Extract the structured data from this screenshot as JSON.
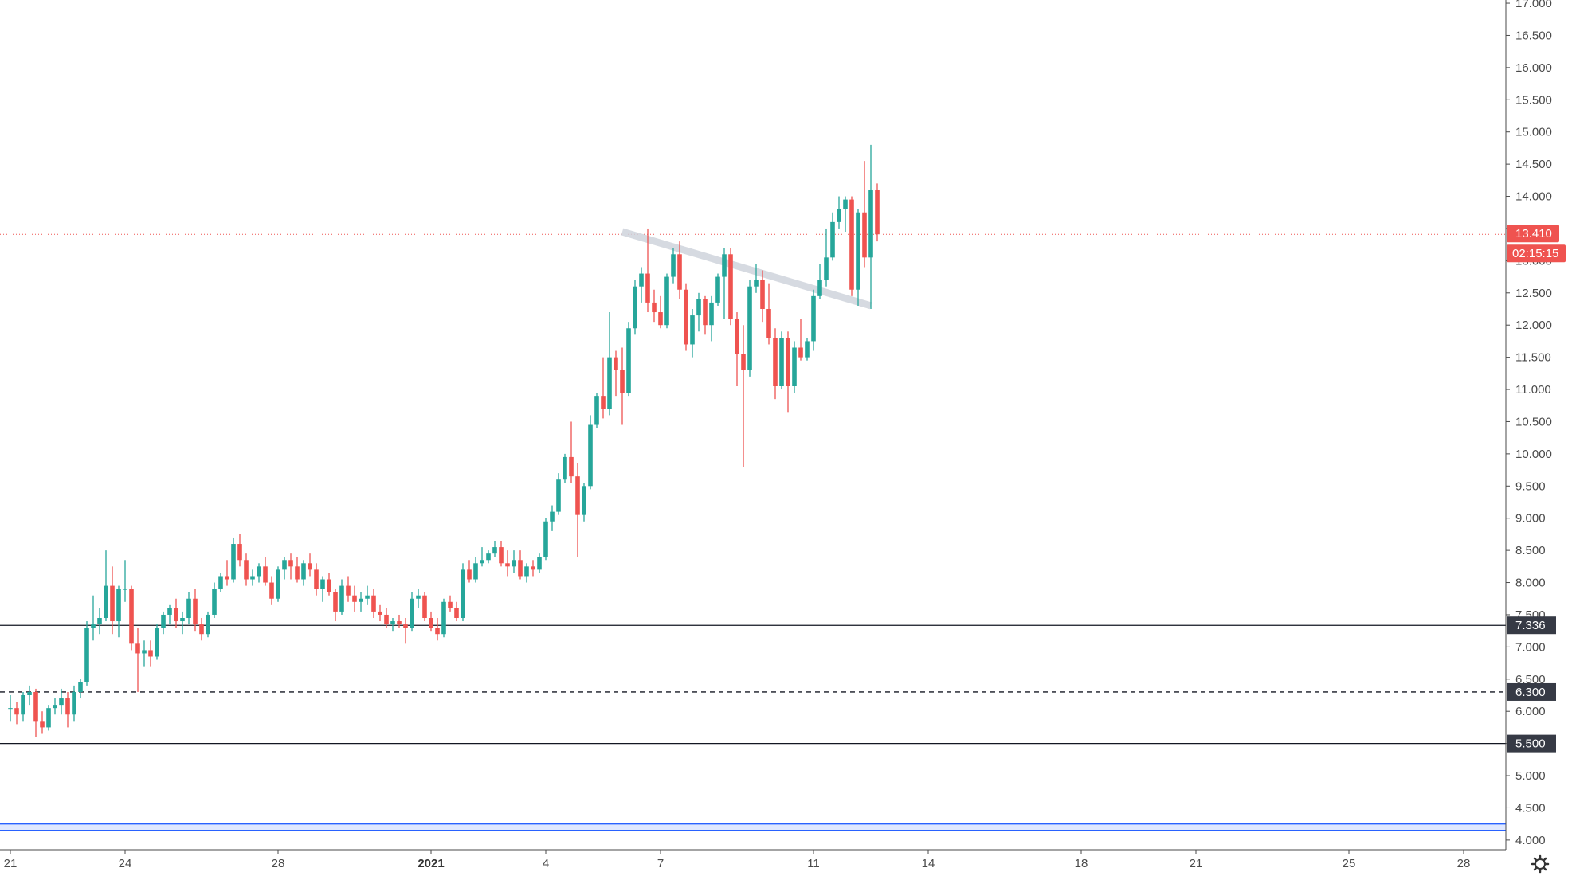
{
  "colors": {
    "up": "#26a69a",
    "down": "#ef5350",
    "price_line": "#ef5350",
    "level_line": "#131722",
    "level_badge": "#363a45",
    "band": "#2962ff",
    "trendline": "#cfd3dc",
    "axis": "#4a4a4a"
  },
  "icons": {
    "settings": "gear-icon"
  },
  "chart_data": {
    "type": "candlestick",
    "ylim": [
      3.85,
      17.05
    ],
    "y_ticks": [
      "4.000",
      "4.500",
      "5.000",
      "5.500",
      "6.000",
      "6.500",
      "7.000",
      "7.500",
      "8.000",
      "8.500",
      "9.000",
      "9.500",
      "10.000",
      "10.500",
      "11.000",
      "11.500",
      "12.000",
      "12.500",
      "13.000",
      "13.500",
      "14.000",
      "14.500",
      "15.000",
      "15.500",
      "16.000",
      "16.500",
      "17.000"
    ],
    "x_ticks": [
      {
        "label": "21",
        "bar": 0
      },
      {
        "label": "24",
        "bar": 18
      },
      {
        "label": "28",
        "bar": 42
      },
      {
        "label": "2021",
        "bar": 66,
        "bold": true
      },
      {
        "label": "4",
        "bar": 84
      },
      {
        "label": "7",
        "bar": 102
      },
      {
        "label": "11",
        "bar": 126
      },
      {
        "label": "14",
        "bar": 144
      },
      {
        "label": "18",
        "bar": 168
      },
      {
        "label": "21",
        "bar": 186
      },
      {
        "label": "25",
        "bar": 210
      },
      {
        "label": "28",
        "bar": 228
      }
    ],
    "interval": "4h",
    "candles": [
      [
        6.05,
        6.25,
        5.85,
        6.05
      ],
      [
        6.05,
        6.15,
        5.8,
        5.95
      ],
      [
        5.95,
        6.3,
        5.85,
        6.25
      ],
      [
        6.25,
        6.4,
        6.1,
        6.3
      ],
      [
        6.3,
        6.35,
        5.6,
        5.85
      ],
      [
        5.85,
        6.0,
        5.65,
        5.75
      ],
      [
        5.75,
        6.1,
        5.7,
        6.05
      ],
      [
        6.05,
        6.2,
        5.95,
        6.1
      ],
      [
        6.1,
        6.35,
        5.95,
        6.2
      ],
      [
        6.2,
        6.3,
        5.75,
        5.95
      ],
      [
        5.95,
        6.4,
        5.85,
        6.3
      ],
      [
        6.3,
        6.5,
        6.2,
        6.45
      ],
      [
        6.45,
        7.4,
        6.4,
        7.3
      ],
      [
        7.3,
        7.8,
        7.1,
        7.35
      ],
      [
        7.35,
        7.6,
        7.2,
        7.45
      ],
      [
        7.45,
        8.5,
        7.4,
        7.95
      ],
      [
        7.95,
        8.25,
        7.2,
        7.4
      ],
      [
        7.4,
        7.95,
        7.15,
        7.9
      ],
      [
        7.9,
        8.35,
        7.7,
        7.9
      ],
      [
        7.9,
        7.95,
        6.95,
        7.05
      ],
      [
        7.05,
        7.3,
        6.3,
        6.9
      ],
      [
        6.9,
        7.1,
        6.7,
        6.95
      ],
      [
        6.95,
        7.1,
        6.7,
        6.85
      ],
      [
        6.85,
        7.35,
        6.8,
        7.3
      ],
      [
        7.3,
        7.55,
        7.2,
        7.5
      ],
      [
        7.5,
        7.65,
        7.35,
        7.6
      ],
      [
        7.6,
        7.75,
        7.3,
        7.4
      ],
      [
        7.4,
        7.55,
        7.2,
        7.45
      ],
      [
        7.45,
        7.85,
        7.35,
        7.75
      ],
      [
        7.75,
        7.9,
        7.25,
        7.35
      ],
      [
        7.35,
        7.45,
        7.1,
        7.2
      ],
      [
        7.2,
        7.55,
        7.15,
        7.5
      ],
      [
        7.5,
        8.0,
        7.45,
        7.9
      ],
      [
        7.9,
        8.15,
        7.85,
        8.1
      ],
      [
        8.1,
        8.35,
        7.95,
        8.05
      ],
      [
        8.05,
        8.7,
        8.0,
        8.6
      ],
      [
        8.6,
        8.75,
        8.25,
        8.35
      ],
      [
        8.35,
        8.45,
        7.95,
        8.05
      ],
      [
        8.05,
        8.2,
        7.95,
        8.1
      ],
      [
        8.1,
        8.3,
        8.0,
        8.25
      ],
      [
        8.25,
        8.4,
        7.95,
        8.0
      ],
      [
        8.0,
        8.1,
        7.65,
        7.75
      ],
      [
        7.75,
        8.25,
        7.7,
        8.2
      ],
      [
        8.2,
        8.4,
        8.05,
        8.35
      ],
      [
        8.35,
        8.45,
        8.05,
        8.25
      ],
      [
        8.25,
        8.4,
        8.0,
        8.05
      ],
      [
        8.05,
        8.35,
        7.95,
        8.3
      ],
      [
        8.3,
        8.45,
        8.1,
        8.2
      ],
      [
        8.2,
        8.3,
        7.8,
        7.9
      ],
      [
        7.9,
        8.1,
        7.7,
        8.05
      ],
      [
        8.05,
        8.15,
        7.8,
        7.85
      ],
      [
        7.85,
        7.9,
        7.4,
        7.55
      ],
      [
        7.55,
        8.05,
        7.5,
        7.95
      ],
      [
        7.95,
        8.1,
        7.7,
        7.8
      ],
      [
        7.8,
        7.95,
        7.55,
        7.7
      ],
      [
        7.7,
        7.85,
        7.55,
        7.75
      ],
      [
        7.75,
        7.95,
        7.65,
        7.8
      ],
      [
        7.8,
        7.9,
        7.45,
        7.55
      ],
      [
        7.55,
        7.65,
        7.4,
        7.5
      ],
      [
        7.5,
        7.6,
        7.3,
        7.35
      ],
      [
        7.35,
        7.45,
        7.25,
        7.4
      ],
      [
        7.4,
        7.5,
        7.3,
        7.35
      ],
      [
        7.35,
        7.45,
        7.05,
        7.3
      ],
      [
        7.3,
        7.85,
        7.25,
        7.75
      ],
      [
        7.75,
        7.9,
        7.6,
        7.8
      ],
      [
        7.8,
        7.85,
        7.4,
        7.45
      ],
      [
        7.45,
        7.55,
        7.25,
        7.3
      ],
      [
        7.3,
        7.45,
        7.1,
        7.2
      ],
      [
        7.2,
        7.75,
        7.15,
        7.7
      ],
      [
        7.7,
        7.8,
        7.55,
        7.6
      ],
      [
        7.6,
        7.7,
        7.4,
        7.45
      ],
      [
        7.45,
        8.3,
        7.4,
        8.2
      ],
      [
        8.2,
        8.35,
        8.0,
        8.05
      ],
      [
        8.05,
        8.4,
        8.0,
        8.3
      ],
      [
        8.3,
        8.55,
        8.25,
        8.35
      ],
      [
        8.35,
        8.5,
        8.3,
        8.45
      ],
      [
        8.45,
        8.65,
        8.4,
        8.55
      ],
      [
        8.55,
        8.65,
        8.25,
        8.3
      ],
      [
        8.3,
        8.5,
        8.1,
        8.25
      ],
      [
        8.25,
        8.5,
        8.15,
        8.35
      ],
      [
        8.35,
        8.5,
        8.05,
        8.1
      ],
      [
        8.1,
        8.3,
        8.0,
        8.25
      ],
      [
        8.25,
        8.35,
        8.1,
        8.2
      ],
      [
        8.2,
        8.45,
        8.15,
        8.4
      ],
      [
        8.4,
        9.0,
        8.35,
        8.95
      ],
      [
        8.95,
        9.2,
        8.8,
        9.1
      ],
      [
        9.1,
        9.7,
        9.05,
        9.6
      ],
      [
        9.6,
        10.0,
        9.55,
        9.95
      ],
      [
        9.95,
        10.5,
        9.55,
        9.65
      ],
      [
        9.65,
        9.85,
        8.4,
        9.05
      ],
      [
        9.05,
        9.55,
        8.95,
        9.5
      ],
      [
        9.5,
        10.6,
        9.45,
        10.45
      ],
      [
        10.45,
        10.95,
        10.4,
        10.9
      ],
      [
        10.9,
        11.5,
        10.55,
        10.7
      ],
      [
        10.7,
        12.2,
        10.6,
        11.5
      ],
      [
        11.5,
        11.6,
        10.9,
        11.3
      ],
      [
        11.3,
        11.65,
        10.45,
        10.95
      ],
      [
        10.95,
        12.05,
        10.9,
        11.95
      ],
      [
        11.95,
        12.7,
        11.85,
        12.6
      ],
      [
        12.6,
        12.9,
        12.35,
        12.8
      ],
      [
        12.8,
        13.5,
        12.2,
        12.35
      ],
      [
        12.35,
        12.55,
        12.05,
        12.2
      ],
      [
        12.2,
        12.45,
        11.95,
        12.0
      ],
      [
        12.0,
        12.8,
        11.95,
        12.75
      ],
      [
        12.75,
        13.2,
        12.65,
        13.1
      ],
      [
        13.1,
        13.3,
        12.4,
        12.55
      ],
      [
        12.55,
        12.65,
        11.6,
        11.7
      ],
      [
        11.7,
        12.25,
        11.5,
        12.15
      ],
      [
        12.15,
        12.5,
        11.9,
        12.4
      ],
      [
        12.4,
        12.45,
        11.85,
        12.0
      ],
      [
        12.0,
        12.45,
        11.75,
        12.35
      ],
      [
        12.35,
        12.8,
        12.3,
        12.75
      ],
      [
        12.75,
        13.2,
        12.1,
        13.1
      ],
      [
        13.1,
        13.2,
        12.0,
        12.1
      ],
      [
        12.1,
        12.2,
        11.05,
        11.55
      ],
      [
        11.55,
        12.0,
        9.8,
        11.3
      ],
      [
        11.3,
        12.7,
        11.2,
        12.6
      ],
      [
        12.6,
        12.95,
        12.5,
        12.7
      ],
      [
        12.7,
        12.85,
        12.05,
        12.25
      ],
      [
        12.25,
        12.65,
        11.7,
        11.8
      ],
      [
        11.8,
        11.95,
        10.85,
        11.05
      ],
      [
        11.05,
        11.9,
        11.0,
        11.8
      ],
      [
        11.8,
        11.9,
        10.65,
        11.05
      ],
      [
        11.05,
        11.75,
        10.95,
        11.65
      ],
      [
        11.65,
        12.1,
        11.45,
        11.5
      ],
      [
        11.5,
        11.8,
        11.45,
        11.75
      ],
      [
        11.75,
        12.55,
        11.6,
        12.45
      ],
      [
        12.45,
        12.95,
        12.4,
        12.7
      ],
      [
        12.7,
        13.5,
        12.6,
        13.05
      ],
      [
        13.05,
        13.75,
        13.0,
        13.6
      ],
      [
        13.6,
        14.0,
        13.5,
        13.8
      ],
      [
        13.8,
        14.0,
        13.45,
        13.95
      ],
      [
        13.95,
        14.0,
        12.45,
        12.55
      ],
      [
        12.55,
        13.8,
        12.3,
        13.75
      ],
      [
        13.75,
        14.55,
        12.9,
        13.05
      ],
      [
        13.05,
        14.8,
        12.25,
        14.1
      ],
      [
        14.1,
        14.2,
        13.3,
        13.41
      ]
    ],
    "trendline": {
      "start": {
        "bar": 96,
        "price": 13.45
      },
      "end": {
        "bar": 135,
        "price": 12.3
      }
    },
    "levels": [
      {
        "price": 7.336,
        "label": "7.336",
        "style": "solid"
      },
      {
        "price": 6.3,
        "label": "6.300",
        "style": "dashed"
      },
      {
        "price": 5.5,
        "label": "5.500",
        "style": "solid"
      }
    ],
    "band": {
      "low": 4.15,
      "high": 4.25
    },
    "last_price": {
      "price": 13.41,
      "label": "13.410",
      "countdown": "02:15:15"
    }
  }
}
